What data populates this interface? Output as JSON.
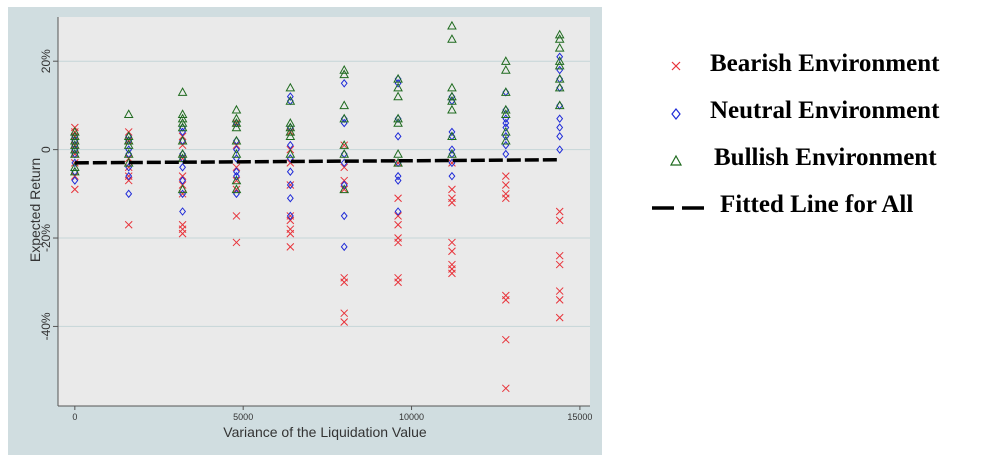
{
  "chart_data": {
    "type": "scatter",
    "title": "",
    "xlabel": "Variance of the Liquidation Value",
    "ylabel": "Expected Return",
    "xlim": [
      -500,
      15300
    ],
    "ylim": [
      -58,
      30
    ],
    "x_ticks": [
      0,
      5000,
      10000,
      15000
    ],
    "x_tick_labels": [
      "0",
      "5000",
      "10000",
      "15000"
    ],
    "y_ticks": [
      20,
      0,
      -20,
      -40
    ],
    "y_tick_labels": [
      "20%",
      "0",
      "-20%",
      "-40%"
    ],
    "grid": true,
    "legend_placement": "right, outside plot",
    "series": [
      {
        "name": "Bearish Environment",
        "marker": "x",
        "color": "#e8333a",
        "points": [
          [
            0,
            5
          ],
          [
            0,
            4
          ],
          [
            0,
            3
          ],
          [
            0,
            1
          ],
          [
            0,
            -1
          ],
          [
            0,
            -3
          ],
          [
            0,
            -6
          ],
          [
            0,
            -9
          ],
          [
            1600,
            4
          ],
          [
            1600,
            2
          ],
          [
            1600,
            -2
          ],
          [
            1600,
            -4
          ],
          [
            1600,
            -6
          ],
          [
            1600,
            -7
          ],
          [
            1600,
            -17
          ],
          [
            3200,
            3
          ],
          [
            3200,
            1
          ],
          [
            3200,
            -2
          ],
          [
            3200,
            -6
          ],
          [
            3200,
            -8
          ],
          [
            3200,
            -10
          ],
          [
            3200,
            -17
          ],
          [
            3200,
            -18
          ],
          [
            3200,
            -19
          ],
          [
            4800,
            6
          ],
          [
            4800,
            1
          ],
          [
            4800,
            -4
          ],
          [
            4800,
            -7
          ],
          [
            4800,
            -9
          ],
          [
            4800,
            -15
          ],
          [
            4800,
            -21
          ],
          [
            6400,
            4
          ],
          [
            6400,
            0
          ],
          [
            6400,
            -3
          ],
          [
            6400,
            -8
          ],
          [
            6400,
            -15
          ],
          [
            6400,
            -16
          ],
          [
            6400,
            -18
          ],
          [
            6400,
            -19
          ],
          [
            6400,
            -22
          ],
          [
            8000,
            1
          ],
          [
            8000,
            -4
          ],
          [
            8000,
            -7
          ],
          [
            8000,
            -9
          ],
          [
            8000,
            -29
          ],
          [
            8000,
            -30
          ],
          [
            8000,
            -37
          ],
          [
            8000,
            -39
          ],
          [
            9600,
            -3
          ],
          [
            9600,
            -11
          ],
          [
            9600,
            -15
          ],
          [
            9600,
            -17
          ],
          [
            9600,
            -20
          ],
          [
            9600,
            -21
          ],
          [
            9600,
            -29
          ],
          [
            9600,
            -30
          ],
          [
            11200,
            -3
          ],
          [
            11200,
            -9
          ],
          [
            11200,
            -11
          ],
          [
            11200,
            -12
          ],
          [
            11200,
            -21
          ],
          [
            11200,
            -23
          ],
          [
            11200,
            -26
          ],
          [
            11200,
            -27
          ],
          [
            11200,
            -28
          ],
          [
            12800,
            -6
          ],
          [
            12800,
            -8
          ],
          [
            12800,
            -10
          ],
          [
            12800,
            -11
          ],
          [
            12800,
            -33
          ],
          [
            12800,
            -34
          ],
          [
            12800,
            -43
          ],
          [
            12800,
            -54
          ],
          [
            14400,
            -14
          ],
          [
            14400,
            -16
          ],
          [
            14400,
            -24
          ],
          [
            14400,
            -26
          ],
          [
            14400,
            -32
          ],
          [
            14400,
            -34
          ],
          [
            14400,
            -38
          ]
        ]
      },
      {
        "name": "Neutral Environment",
        "marker": "diamond",
        "color": "#1f2bd8",
        "points": [
          [
            0,
            3
          ],
          [
            0,
            2
          ],
          [
            0,
            1
          ],
          [
            0,
            0
          ],
          [
            0,
            -1
          ],
          [
            0,
            -3
          ],
          [
            0,
            -5
          ],
          [
            0,
            -7
          ],
          [
            1600,
            3
          ],
          [
            1600,
            2
          ],
          [
            1600,
            0
          ],
          [
            1600,
            -1
          ],
          [
            1600,
            -4
          ],
          [
            1600,
            -6
          ],
          [
            1600,
            -10
          ],
          [
            3200,
            5
          ],
          [
            3200,
            4
          ],
          [
            3200,
            2
          ],
          [
            3200,
            -1
          ],
          [
            3200,
            -2
          ],
          [
            3200,
            -4
          ],
          [
            3200,
            -7
          ],
          [
            3200,
            -10
          ],
          [
            3200,
            -14
          ],
          [
            4800,
            6
          ],
          [
            4800,
            2
          ],
          [
            4800,
            0
          ],
          [
            4800,
            -2
          ],
          [
            4800,
            -5
          ],
          [
            4800,
            -6
          ],
          [
            4800,
            -10
          ],
          [
            6400,
            12
          ],
          [
            6400,
            11
          ],
          [
            6400,
            5
          ],
          [
            6400,
            1
          ],
          [
            6400,
            -2
          ],
          [
            6400,
            -5
          ],
          [
            6400,
            -8
          ],
          [
            6400,
            -11
          ],
          [
            6400,
            -15
          ],
          [
            8000,
            15
          ],
          [
            8000,
            7
          ],
          [
            8000,
            6
          ],
          [
            8000,
            -1
          ],
          [
            8000,
            -3
          ],
          [
            8000,
            -8
          ],
          [
            8000,
            -15
          ],
          [
            8000,
            -22
          ],
          [
            9600,
            16
          ],
          [
            9600,
            15
          ],
          [
            9600,
            7
          ],
          [
            9600,
            3
          ],
          [
            9600,
            -3
          ],
          [
            9600,
            -6
          ],
          [
            9600,
            -7
          ],
          [
            9600,
            -14
          ],
          [
            11200,
            12
          ],
          [
            11200,
            11
          ],
          [
            11200,
            4
          ],
          [
            11200,
            3
          ],
          [
            11200,
            0
          ],
          [
            11200,
            -1
          ],
          [
            11200,
            -3
          ],
          [
            11200,
            -6
          ],
          [
            12800,
            13
          ],
          [
            12800,
            9
          ],
          [
            12800,
            7
          ],
          [
            12800,
            6
          ],
          [
            12800,
            5
          ],
          [
            12800,
            3
          ],
          [
            12800,
            1
          ],
          [
            12800,
            -1
          ],
          [
            14400,
            21
          ],
          [
            14400,
            18
          ],
          [
            14400,
            16
          ],
          [
            14400,
            14
          ],
          [
            14400,
            10
          ],
          [
            14400,
            7
          ],
          [
            14400,
            5
          ],
          [
            14400,
            3
          ],
          [
            14400,
            0
          ]
        ]
      },
      {
        "name": "Bullish Environment",
        "marker": "triangle",
        "color": "#1f6b1f",
        "points": [
          [
            0,
            4
          ],
          [
            0,
            3
          ],
          [
            0,
            2
          ],
          [
            0,
            1
          ],
          [
            0,
            0
          ],
          [
            0,
            -1
          ],
          [
            0,
            -4
          ],
          [
            0,
            -5
          ],
          [
            1600,
            8
          ],
          [
            1600,
            3
          ],
          [
            1600,
            2
          ],
          [
            1600,
            1
          ],
          [
            1600,
            -1
          ],
          [
            1600,
            -3
          ],
          [
            3200,
            13
          ],
          [
            3200,
            8
          ],
          [
            3200,
            7
          ],
          [
            3200,
            6
          ],
          [
            3200,
            5
          ],
          [
            3200,
            2
          ],
          [
            3200,
            -1
          ],
          [
            3200,
            -2
          ],
          [
            3200,
            -9
          ],
          [
            4800,
            9
          ],
          [
            4800,
            7
          ],
          [
            4800,
            6
          ],
          [
            4800,
            5
          ],
          [
            4800,
            2
          ],
          [
            4800,
            -1
          ],
          [
            4800,
            -7
          ],
          [
            4800,
            -9
          ],
          [
            6400,
            14
          ],
          [
            6400,
            11
          ],
          [
            6400,
            6
          ],
          [
            6400,
            5
          ],
          [
            6400,
            4
          ],
          [
            6400,
            3
          ],
          [
            6400,
            -1
          ],
          [
            8000,
            18
          ],
          [
            8000,
            17
          ],
          [
            8000,
            10
          ],
          [
            8000,
            7
          ],
          [
            8000,
            1
          ],
          [
            8000,
            -1
          ],
          [
            8000,
            -9
          ],
          [
            9600,
            16
          ],
          [
            9600,
            14
          ],
          [
            9600,
            12
          ],
          [
            9600,
            7
          ],
          [
            9600,
            6
          ],
          [
            9600,
            -1
          ],
          [
            9600,
            -3
          ],
          [
            11200,
            28
          ],
          [
            11200,
            25
          ],
          [
            11200,
            14
          ],
          [
            11200,
            12
          ],
          [
            11200,
            11
          ],
          [
            11200,
            9
          ],
          [
            11200,
            3
          ],
          [
            11200,
            -1
          ],
          [
            12800,
            20
          ],
          [
            12800,
            18
          ],
          [
            12800,
            13
          ],
          [
            12800,
            9
          ],
          [
            12800,
            8
          ],
          [
            12800,
            4
          ],
          [
            12800,
            2
          ],
          [
            14400,
            26
          ],
          [
            14400,
            25
          ],
          [
            14400,
            23
          ],
          [
            14400,
            20
          ],
          [
            14400,
            19
          ],
          [
            14400,
            16
          ],
          [
            14400,
            14
          ],
          [
            14400,
            10
          ]
        ]
      }
    ],
    "fitted_line": {
      "name": "Fitted Line for All",
      "style": "dashed",
      "color": "#000000",
      "x": [
        0,
        14400
      ],
      "y": [
        -3.0,
        -2.3
      ]
    },
    "colors": {
      "outer_background": "#d0dde0",
      "plot_background": "#eaeaea",
      "grid": "#c5d5d8"
    }
  }
}
